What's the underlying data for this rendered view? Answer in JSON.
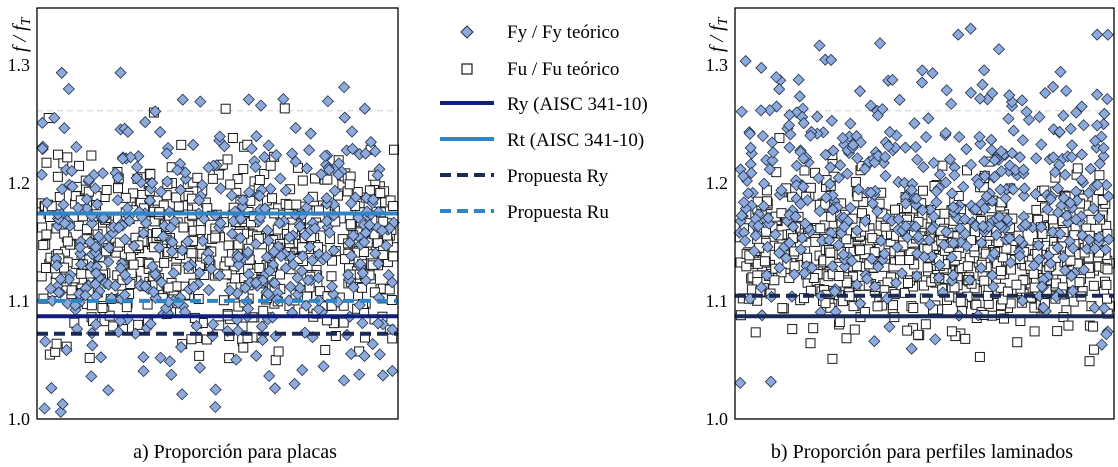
{
  "colors": {
    "fy_marker_fill": "#8eaadb",
    "fy_marker_stroke": "#1f2f4a",
    "fu_marker_fill": "#ffffff",
    "fu_marker_stroke": "#1a1a1a",
    "ry_line": "#0d1f7a",
    "rt_line": "#2e86c8",
    "propuesta_ry_line": "#1b2a55",
    "propuesta_ru_line": "#2e86c8",
    "grid_line": "#d9d9d9"
  },
  "legend": {
    "fy": "Fy / Fy teórico",
    "fu": "Fu / Fu teórico",
    "ry": "Ry (AISC 341-10)",
    "rt": "Rt (AISC 341-10)",
    "propuesta_ry": "Propuesta Ry",
    "propuesta_ru": "Propuesta Ru"
  },
  "chart_data": [
    {
      "type": "scatter",
      "title": "a) Proporción para placas",
      "ylabel": "f / f_T",
      "ylabel_main": "f / f",
      "ylabel_sub": "T",
      "ylim": [
        1.0,
        1.4
      ],
      "yticks": [
        1.0,
        1.1,
        1.2,
        1.3
      ],
      "ytick_labels": [
        "1.0",
        "1.1",
        "1.2",
        "1.3"
      ],
      "grid_values": [
        1.3
      ],
      "n_samples": 200,
      "series": [
        {
          "name": "Fy / Fy teórico",
          "marker": "diamond",
          "count": 450,
          "mean": 1.17,
          "spread": 0.085,
          "min": 1.0,
          "max": 1.395
        },
        {
          "name": "Fu / Fu teórico",
          "marker": "square",
          "count": 650,
          "mean": 1.17,
          "spread": 0.055,
          "min": 1.05,
          "max": 1.31
        }
      ],
      "ref_lines": [
        {
          "name": "Ry (AISC 341-10)",
          "value": 1.1,
          "style": "solid",
          "color_key": "ry_line"
        },
        {
          "name": "Rt (AISC 341-10)",
          "value": 1.2,
          "style": "solid",
          "color_key": "rt_line"
        },
        {
          "name": "Propuesta Ry",
          "value": 1.083,
          "style": "dashed",
          "color_key": "propuesta_ry_line"
        },
        {
          "name": "Propuesta Ru",
          "value": 1.115,
          "style": "dashed",
          "color_key": "propuesta_ru_line"
        }
      ]
    },
    {
      "type": "scatter",
      "title": "b) Proporción para perfiles laminados",
      "ylabel": "f / f_T",
      "ylabel_main": "f / f",
      "ylabel_sub": "T",
      "ylim": [
        1.0,
        1.4
      ],
      "yticks": [
        1.0,
        1.1,
        1.2,
        1.3
      ],
      "ytick_labels": [
        "1.0",
        "1.1",
        "1.2",
        "1.3"
      ],
      "grid_values": [
        1.3
      ],
      "n_samples": 200,
      "series": [
        {
          "name": "Fy / Fy teórico",
          "marker": "diamond",
          "count": 500,
          "mean": 1.22,
          "spread": 0.075,
          "min": 1.03,
          "max": 1.39
        },
        {
          "name": "Fu / Fu teórico",
          "marker": "square",
          "count": 750,
          "mean": 1.16,
          "spread": 0.045,
          "min": 1.05,
          "max": 1.3
        }
      ],
      "ref_lines": [
        {
          "name": "Ry (AISC 341-10)",
          "value": 1.1,
          "style": "solid",
          "color_key": "propuesta_ry_line"
        },
        {
          "name": "Propuesta Ry",
          "value": 1.12,
          "style": "dashed",
          "color_key": "propuesta_ry_line"
        }
      ]
    }
  ]
}
